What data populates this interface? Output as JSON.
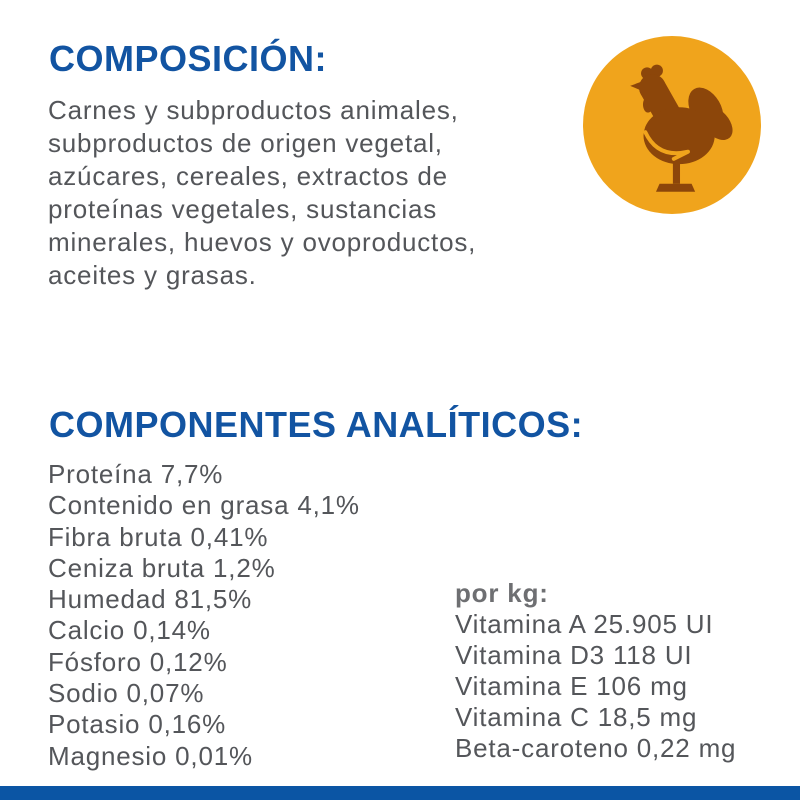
{
  "theme": {
    "background": "#ffffff",
    "accent_blue": "#1254a2",
    "bar_blue": "#0b55a4",
    "text_gray": "#54565a",
    "label_gray": "#6e6f72",
    "icon_orange": "#f0a41c",
    "icon_brown": "#8c460a"
  },
  "composition": {
    "title": "COMPOSICIÓN:",
    "body_lines": [
      "Carnes y subproductos animales,",
      "subproductos de origen vegetal,",
      "azúcares, cereales, extractos de",
      "proteínas vegetales, sustancias",
      "minerales, huevos y ovoproductos,",
      "aceites y grasas."
    ],
    "icon_name": "chicken-icon"
  },
  "analytical": {
    "title": "COMPONENTES ANALÍTICOS:",
    "items": [
      "Proteína 7,7%",
      "Contenido en grasa 4,1%",
      "Fibra bruta 0,41%",
      "Ceniza bruta 1,2%",
      "Humedad 81,5%",
      "Calcio 0,14%",
      "Fósforo 0,12%",
      "Sodio 0,07%",
      "Potasio 0,16%",
      "Magnesio 0,01%"
    ],
    "per_kg": {
      "label": "por kg:",
      "items": [
        "Vitamina A 25.905 UI",
        "Vitamina D3 118 UI",
        "Vitamina E 106 mg",
        "Vitamina C 18,5 mg",
        "Beta-caroteno 0,22 mg"
      ]
    }
  }
}
